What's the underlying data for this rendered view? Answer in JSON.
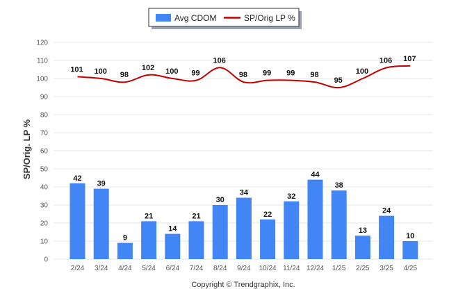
{
  "chart_data": {
    "type": "bar",
    "categories": [
      "2/24",
      "3/24",
      "4/24",
      "5/24",
      "6/24",
      "7/24",
      "8/24",
      "9/24",
      "10/24",
      "11/24",
      "12/24",
      "1/25",
      "2/25",
      "3/25",
      "4/25"
    ],
    "series": [
      {
        "name": "Avg CDOM",
        "type": "bar",
        "color": "#4285f4",
        "values": [
          42,
          39,
          9,
          21,
          14,
          21,
          30,
          34,
          22,
          32,
          44,
          38,
          13,
          24,
          10
        ]
      },
      {
        "name": "SP/Orig LP %",
        "type": "line",
        "color": "#c00000",
        "values": [
          101,
          100,
          98,
          102,
          100,
          99,
          106,
          98,
          99,
          99,
          98,
          95,
          100,
          106,
          107
        ]
      }
    ],
    "ylabel": "SP/Orig. LP %",
    "xlabel": "",
    "ylim": [
      0,
      120
    ],
    "yticks": [
      0,
      10,
      20,
      30,
      40,
      50,
      60,
      70,
      80,
      90,
      100,
      110,
      120
    ],
    "grid": true,
    "legend_position": "top-center"
  },
  "footer": {
    "copyright": "Copyright © Trendgraphix, Inc."
  }
}
